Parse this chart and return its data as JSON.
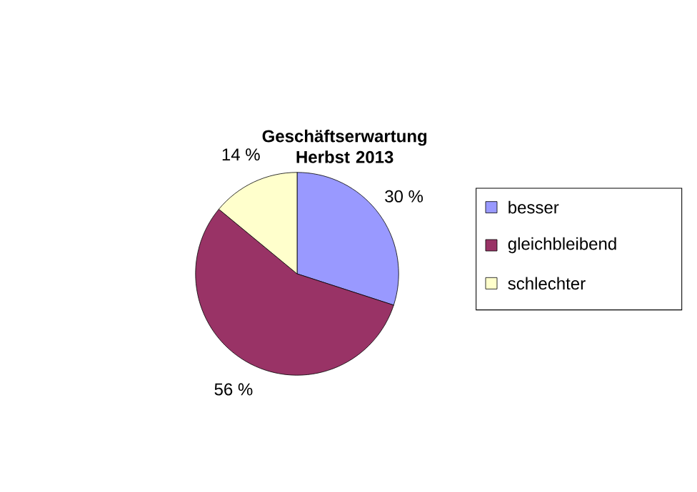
{
  "chart_data": {
    "type": "pie",
    "title": "Geschäftserwartung Herbst 2013",
    "categories": [
      "besser",
      "gleichbleibend",
      "schlechter"
    ],
    "values": [
      30,
      56,
      14
    ],
    "colors": [
      "#9999ff",
      "#993366",
      "#ffffcc"
    ],
    "value_labels": [
      "30 %",
      "56 %",
      "14 %"
    ],
    "legend": "right"
  }
}
